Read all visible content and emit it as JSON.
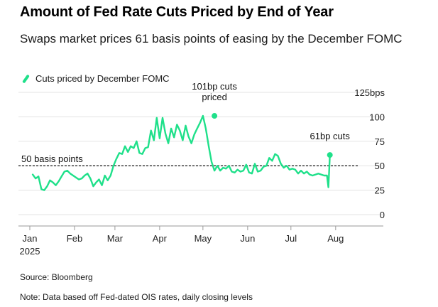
{
  "header": {
    "title": "Amount of Fed Rate Cuts Priced by End of Year",
    "subtitle": "Swaps market prices 61 basis points of easing by the December FOMC"
  },
  "legend": {
    "label": "Cuts priced by December FOMC"
  },
  "footer": {
    "source": "Source: Bloomberg",
    "note": "Note: Data based off Fed-dated OIS rates, daily closing levels"
  },
  "colors": {
    "series": "#1fe08a",
    "reference": "#000000",
    "grid": "#e3e3e3"
  },
  "chart_data": {
    "type": "line",
    "title": "Amount of Fed Rate Cuts Priced by End of Year",
    "subtitle": "Swaps market prices 61 basis points of easing by the December FOMC",
    "ylim": [
      0,
      125
    ],
    "xlim": [
      0,
      218
    ],
    "grid": true,
    "legend_position": "top-left",
    "y_ticks": [
      {
        "value": 0,
        "label": "0"
      },
      {
        "value": 25,
        "label": "25"
      },
      {
        "value": 50,
        "label": "50"
      },
      {
        "value": 75,
        "label": "75"
      },
      {
        "value": 100,
        "label": "100"
      },
      {
        "value": 125,
        "label": "125bps"
      }
    ],
    "x_ticks": [
      {
        "value": 0,
        "label": "Jan",
        "sublabel": "2025"
      },
      {
        "value": 31,
        "label": "Feb"
      },
      {
        "value": 59,
        "label": "Mar"
      },
      {
        "value": 90,
        "label": "Apr"
      },
      {
        "value": 120,
        "label": "May"
      },
      {
        "value": 151,
        "label": "Jun"
      },
      {
        "value": 181,
        "label": "Jul"
      },
      {
        "value": 212,
        "label": "Aug"
      }
    ],
    "reference_line": {
      "value": 50,
      "label": "50 basis points"
    },
    "annotations": [
      {
        "x": 128,
        "y": 101,
        "lines": [
          "101bp cuts",
          "priced"
        ]
      },
      {
        "x": 208,
        "y": 61,
        "lines": [
          "61bp cuts"
        ]
      }
    ],
    "series": [
      {
        "name": "Cuts priced by December FOMC",
        "x": [
          2,
          4,
          6,
          8,
          10,
          12,
          14,
          16,
          18,
          20,
          22,
          24,
          26,
          28,
          30,
          32,
          34,
          36,
          38,
          40,
          42,
          44,
          46,
          48,
          50,
          52,
          54,
          56,
          58,
          60,
          62,
          64,
          66,
          68,
          70,
          72,
          74,
          76,
          78,
          80,
          82,
          84,
          86,
          88,
          90,
          92,
          94,
          96,
          98,
          100,
          102,
          104,
          106,
          108,
          110,
          112,
          114,
          116,
          118,
          120,
          122,
          124,
          126,
          128,
          130,
          132,
          134,
          136,
          138,
          140,
          142,
          144,
          146,
          148,
          150,
          152,
          154,
          156,
          158,
          160,
          162,
          164,
          166,
          168,
          170,
          172,
          174,
          176,
          178,
          180,
          182,
          184,
          186,
          188,
          190,
          192,
          194,
          196,
          198,
          200,
          202,
          204,
          206,
          207,
          208
        ],
        "y": [
          41,
          37,
          39,
          26,
          25,
          29,
          35,
          33,
          30,
          34,
          39,
          44,
          45,
          42,
          40,
          38,
          36,
          37,
          40,
          42,
          37,
          29,
          33,
          36,
          30,
          40,
          35,
          40,
          50,
          57,
          63,
          62,
          70,
          64,
          70,
          68,
          75,
          63,
          62,
          68,
          69,
          86,
          76,
          99,
          78,
          99,
          83,
          73,
          88,
          79,
          92,
          86,
          76,
          91,
          80,
          73,
          82,
          88,
          94,
          101,
          88,
          70,
          54,
          45,
          50,
          45,
          48,
          47,
          50,
          44,
          43,
          46,
          44,
          45,
          51,
          43,
          42,
          52,
          44,
          45,
          49,
          50,
          58,
          55,
          62,
          60,
          52,
          48,
          50,
          46,
          47,
          46,
          42,
          45,
          42,
          44,
          41,
          40,
          41,
          42,
          41,
          40,
          40,
          28,
          61
        ]
      }
    ]
  }
}
